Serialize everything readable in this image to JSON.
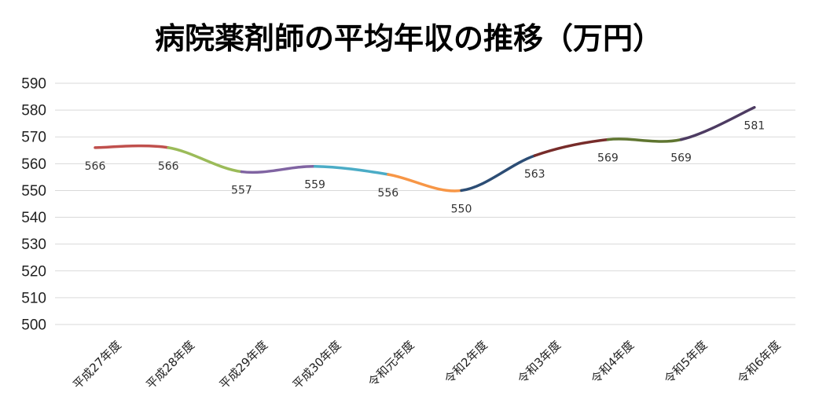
{
  "chart_data": {
    "type": "line",
    "title": "病院薬剤師の平均年収の推移（万円）",
    "xlabel": "",
    "ylabel": "",
    "categories": [
      "平成27年度",
      "平成28年度",
      "平成29年度",
      "平成30年度",
      "令和元年度",
      "令和2年度",
      "令和3年度",
      "令和4年度",
      "令和5年度",
      "令和6年度"
    ],
    "values": [
      566,
      566,
      557,
      559,
      556,
      550,
      563,
      569,
      569,
      581
    ],
    "ylim": [
      500,
      590
    ],
    "yticks": [
      500,
      510,
      520,
      530,
      540,
      550,
      560,
      570,
      580,
      590
    ],
    "grid": true,
    "legend": "none",
    "segment_colors": [
      "#c0504d",
      "#9bbb59",
      "#8064a2",
      "#4bacc6",
      "#f79646",
      "#2c4d75",
      "#772c2a",
      "#5f7530",
      "#4d3b62"
    ]
  }
}
